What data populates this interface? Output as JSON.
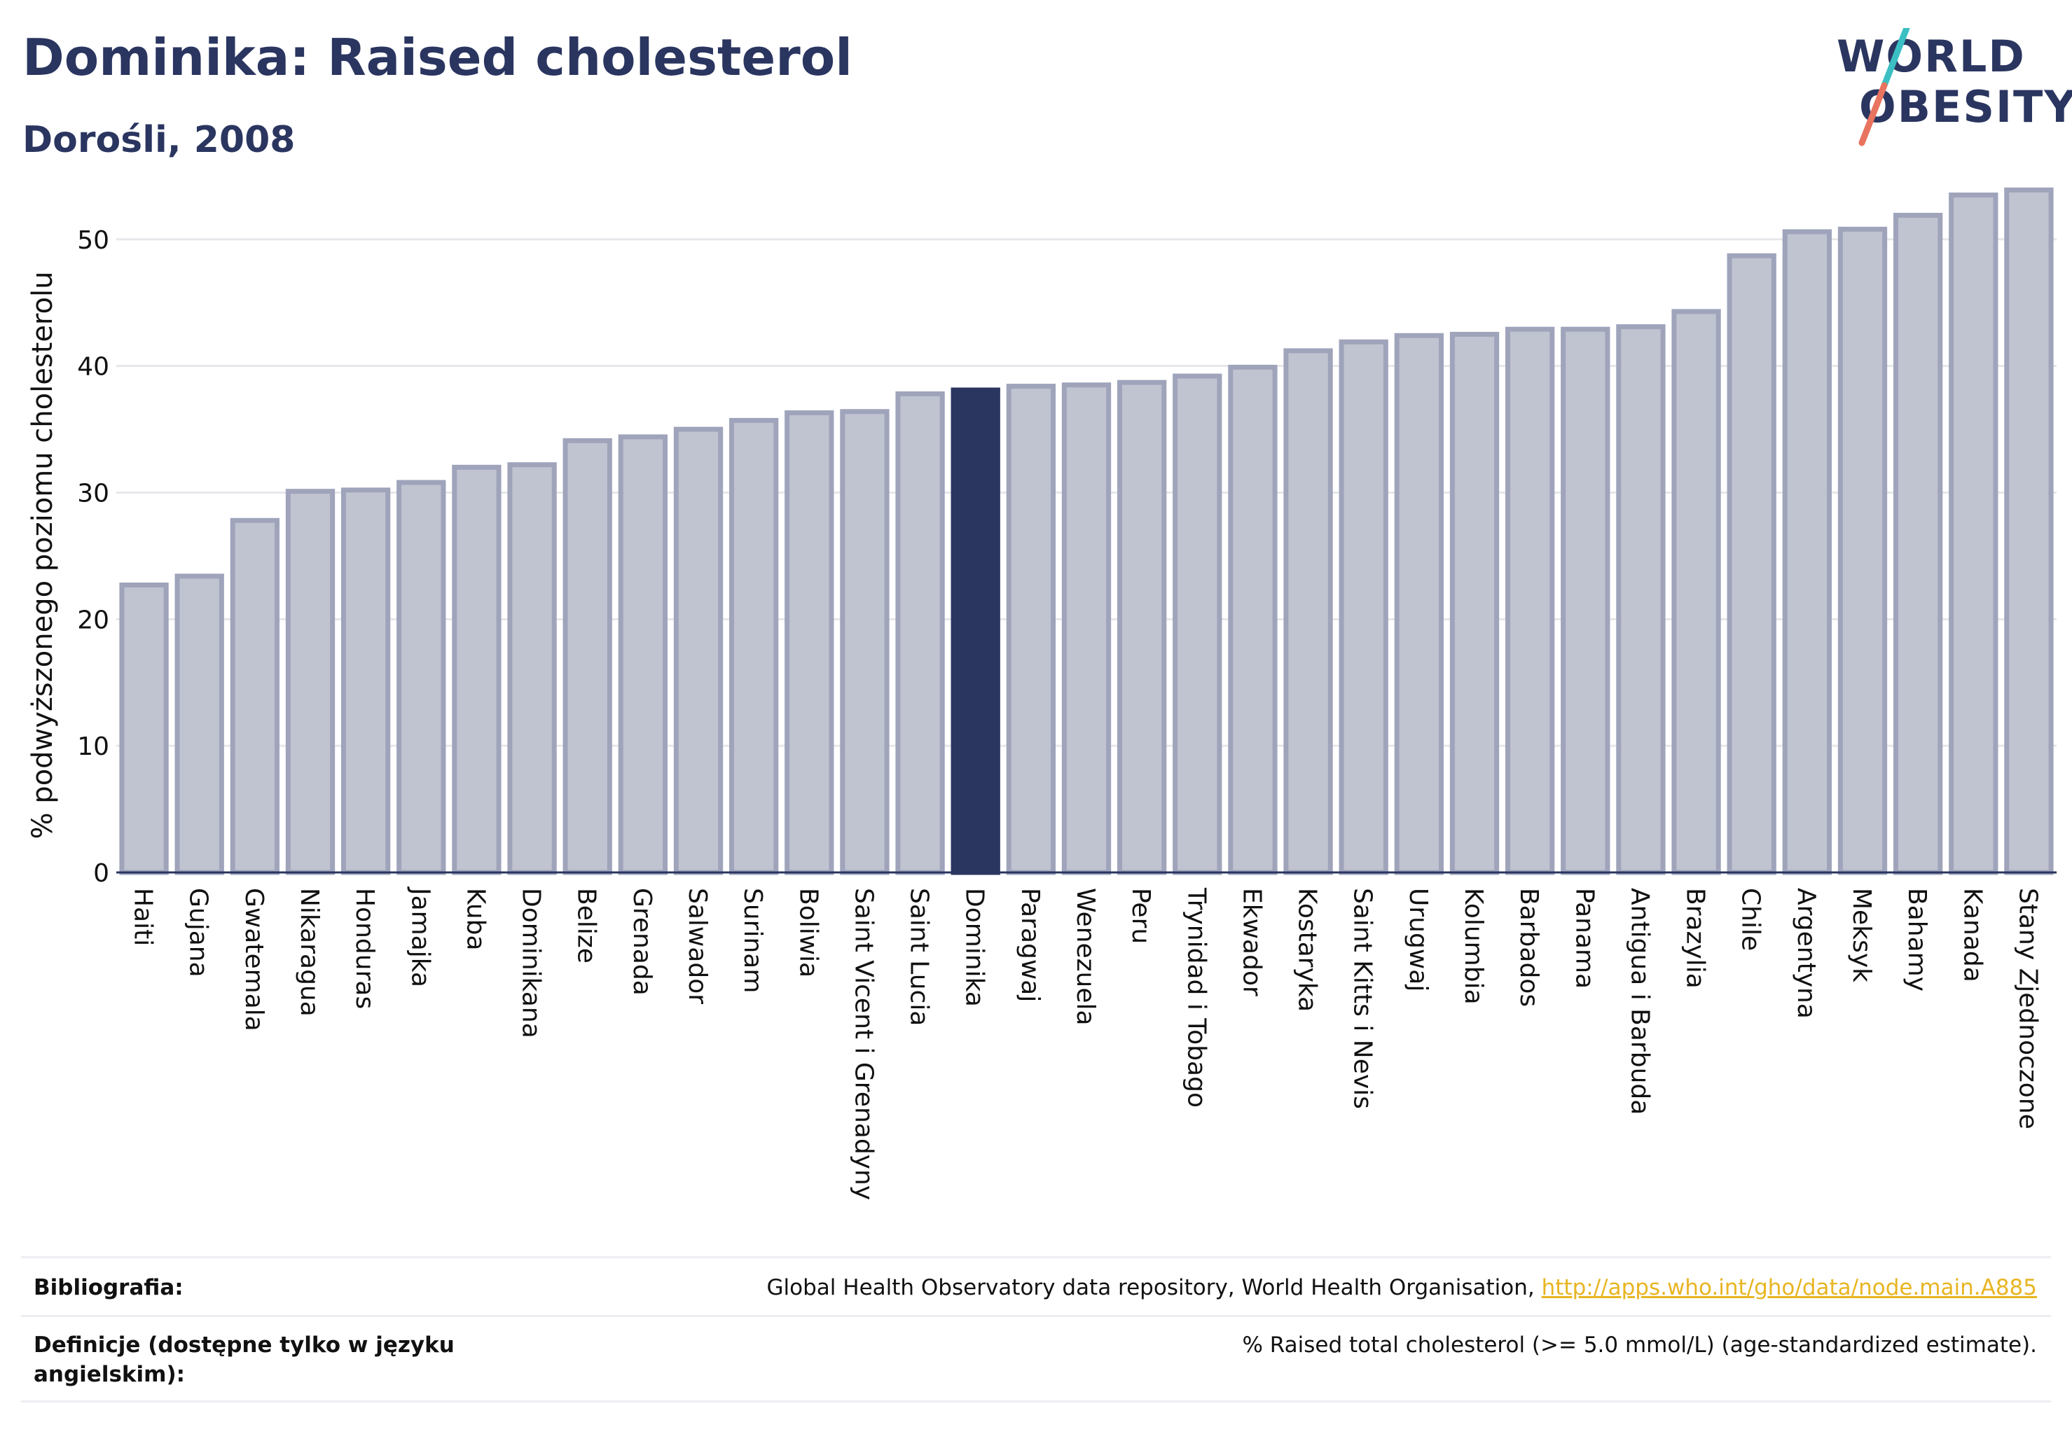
{
  "header": {
    "title": "Dominika: Raised cholesterol",
    "subtitle": "Dorośli, 2008"
  },
  "logo": {
    "line1": "WORLD",
    "line2": "OBESITY",
    "colors": {
      "text": "#2a3560",
      "slash_top": "#3bbfc3",
      "slash_bottom": "#e8735f"
    }
  },
  "colors": {
    "bar_fill": "#c0c3d0",
    "bar_border": "#9fa4bb",
    "highlight": "#2a3560",
    "grid": "#e6e7ea",
    "axis": "#2a3560"
  },
  "chart_data": {
    "type": "bar",
    "ylabel": "% podwyższonego poziomu cholesterolu",
    "ylim": [
      0,
      54.8
    ],
    "yticks": [
      0,
      10,
      20,
      30,
      40,
      50
    ],
    "grid": true,
    "highlight": "Dominika",
    "categories": [
      "Haiti",
      "Gujana",
      "Gwatemala",
      "Nikaragua",
      "Honduras",
      "Jamajka",
      "Kuba",
      "Dominikana",
      "Belize",
      "Grenada",
      "Salwador",
      "Surinam",
      "Boliwia",
      "Saint Vicent i Grenadyny",
      "Saint Lucia",
      "Dominika",
      "Paragwaj",
      "Wenezuela",
      "Peru",
      "Trynidad i Tobago",
      "Ekwador",
      "Kostaryka",
      "Saint Kitts i Nevis",
      "Urugwaj",
      "Kolumbia",
      "Barbados",
      "Panama",
      "Antigua i Barbuda",
      "Brazylia",
      "Chile",
      "Argentyna",
      "Meksyk",
      "Bahamy",
      "Kanada",
      "Stany Zjednoczone"
    ],
    "values": [
      22.7,
      23.4,
      27.8,
      30.1,
      30.2,
      30.8,
      32.0,
      32.2,
      34.1,
      34.4,
      35.0,
      35.7,
      36.3,
      36.4,
      37.8,
      38.1,
      38.4,
      38.5,
      38.7,
      39.2,
      39.9,
      41.2,
      41.9,
      42.4,
      42.5,
      42.9,
      42.9,
      43.1,
      44.3,
      48.7,
      50.6,
      50.8,
      51.9,
      53.5,
      53.9
    ]
  },
  "footer": {
    "bibliography_label": "Bibliografia:",
    "bibliography_text": "Global Health Observatory data repository, World Health Organisation, ",
    "bibliography_link": "http://apps.who.int/gho/data/node.main.A885",
    "definitions_label_line1": "Definicje (dostępne tylko w języku",
    "definitions_label_line2": "angielskim):",
    "definitions_text": "% Raised total cholesterol (>= 5.0 mmol/L) (age-standardized estimate)."
  }
}
